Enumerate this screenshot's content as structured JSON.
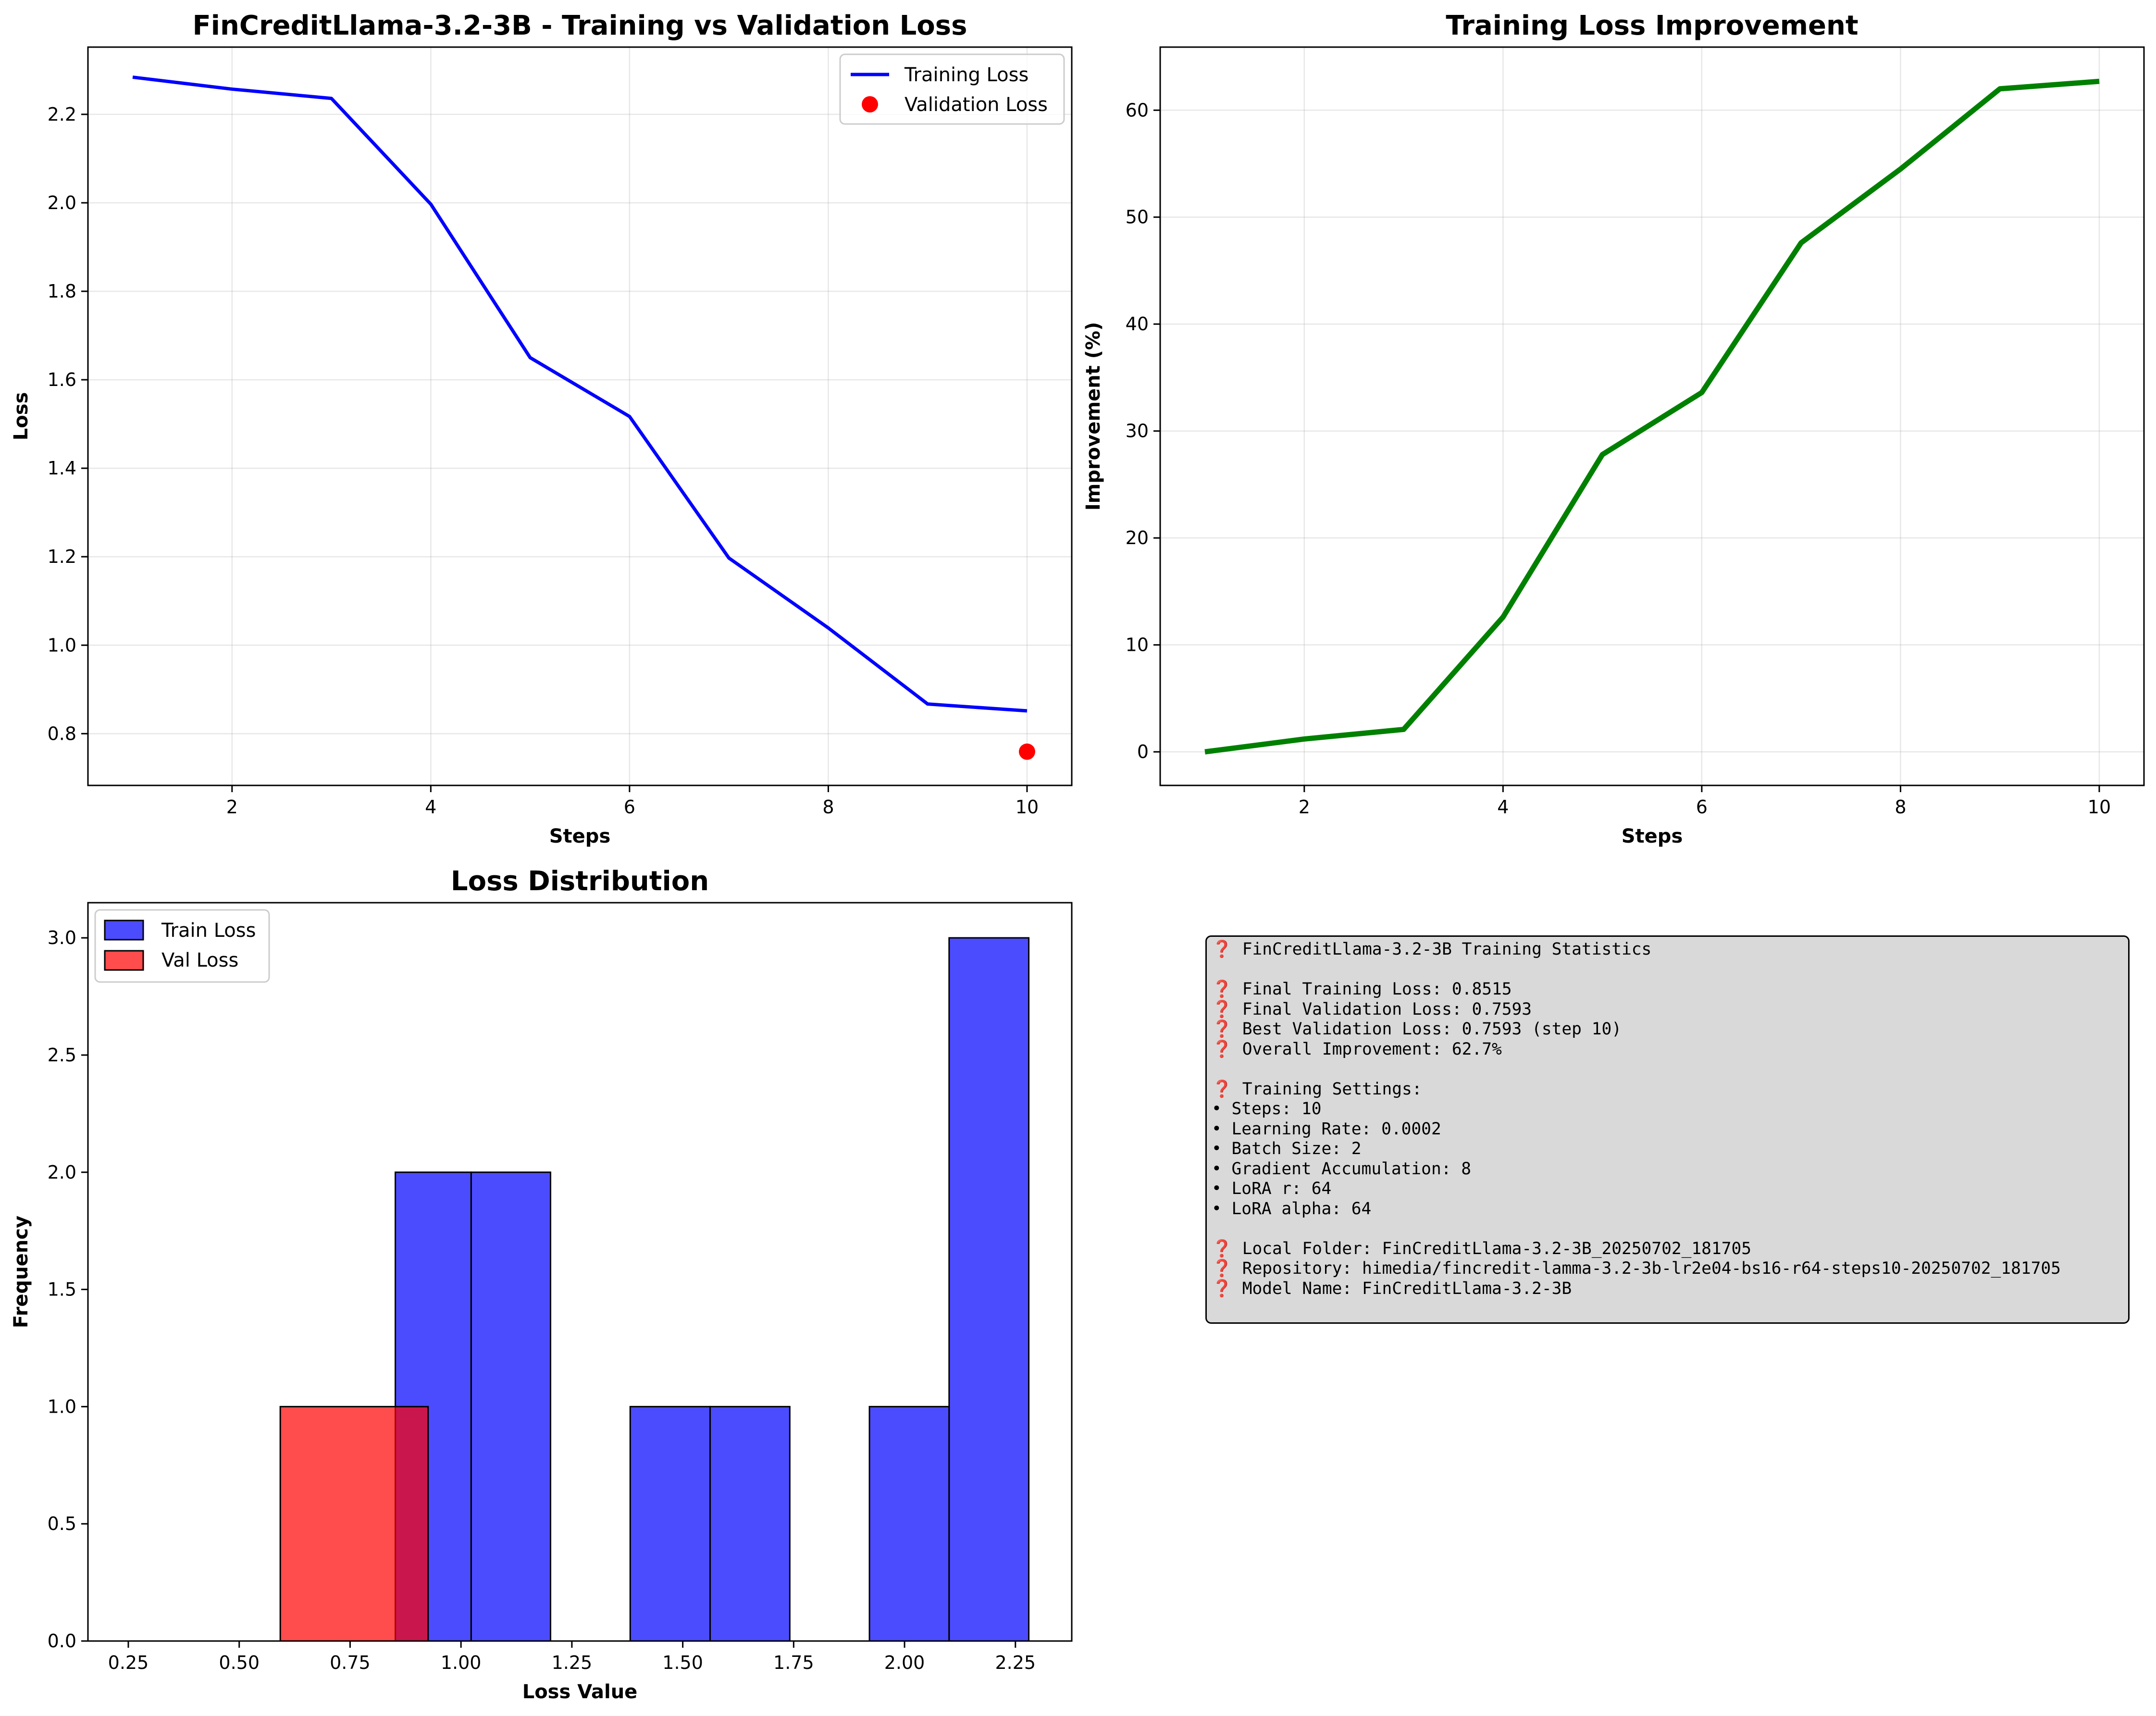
{
  "chart_data": [
    {
      "type": "line",
      "title": "FinCreditLlama-3.2-3B - Training vs Validation Loss",
      "xlabel": "Steps",
      "ylabel": "Loss",
      "xlim": [
        0.55,
        10.45
      ],
      "ylim": [
        0.683,
        2.352
      ],
      "xticks": [
        2,
        4,
        6,
        8,
        10
      ],
      "yticks": [
        0.8,
        1.0,
        1.2,
        1.4,
        1.6,
        1.8,
        2.0,
        2.2
      ],
      "grid": true,
      "legend": "top-right",
      "series": [
        {
          "name": "Training Loss",
          "style": "line",
          "color": "#0000ff",
          "x": [
            1,
            2,
            3,
            4,
            5,
            6,
            7,
            8,
            9,
            10
          ],
          "y": [
            2.284,
            2.257,
            2.236,
            1.997,
            1.65,
            1.517,
            1.197,
            1.039,
            0.867,
            0.8515
          ]
        },
        {
          "name": "Validation Loss",
          "style": "scatter",
          "color": "#ff0000",
          "x": [
            10
          ],
          "y": [
            0.7593
          ]
        }
      ]
    },
    {
      "type": "line",
      "title": "Training Loss Improvement",
      "xlabel": "Steps",
      "ylabel": "Improvement (%)",
      "xlim": [
        0.55,
        10.45
      ],
      "ylim": [
        -3.14,
        65.9
      ],
      "xticks": [
        2,
        4,
        6,
        8,
        10
      ],
      "yticks": [
        0,
        10,
        20,
        30,
        40,
        50,
        60
      ],
      "grid": true,
      "series": [
        {
          "color": "#008000",
          "x": [
            1,
            2,
            3,
            4,
            5,
            6,
            7,
            8,
            9,
            10
          ],
          "y": [
            0.0,
            1.2,
            2.1,
            12.6,
            27.8,
            33.6,
            47.6,
            54.5,
            62.0,
            62.7
          ]
        }
      ]
    },
    {
      "type": "bar",
      "subtype": "histogram",
      "title": "Loss Distribution",
      "xlabel": "Loss Value",
      "ylabel": "Frequency",
      "xlim": [
        0.159,
        2.377
      ],
      "ylim": [
        0,
        3.15
      ],
      "xticks": [
        0.25,
        0.5,
        0.75,
        1.0,
        1.25,
        1.5,
        1.75,
        2.0,
        2.25
      ],
      "xtick_labels": [
        "0.25",
        "0.50",
        "0.75",
        "1.00",
        "1.25",
        "1.50",
        "1.75",
        "2.00",
        "2.25"
      ],
      "yticks": [
        0.0,
        0.5,
        1.0,
        1.5,
        2.0,
        2.5,
        3.0
      ],
      "yticks_labels": [
        "0.0",
        "0.5",
        "1.0",
        "1.5",
        "2.0",
        "2.5",
        "3.0"
      ],
      "grid": false,
      "legend": "top-left",
      "series": [
        {
          "name": "Train Loss",
          "color": "#0000ff",
          "alpha": 0.7,
          "bins": [
            {
              "x0": 0.852,
              "x1": 1.0229,
              "count": 2
            },
            {
              "x0": 1.0229,
              "x1": 1.2019,
              "count": 2
            },
            {
              "x0": 1.2019,
              "x1": 1.3815,
              "count": 0
            },
            {
              "x0": 1.3815,
              "x1": 1.5617,
              "count": 1
            },
            {
              "x0": 1.5617,
              "x1": 1.7413,
              "count": 1
            },
            {
              "x0": 1.7413,
              "x1": 1.9209,
              "count": 0
            },
            {
              "x0": 1.9209,
              "x1": 2.1005,
              "count": 1
            },
            {
              "x0": 2.1005,
              "x1": 2.2801,
              "count": 3
            }
          ]
        },
        {
          "name": "Val Loss",
          "color": "#ff0000",
          "alpha": 0.7,
          "bins": [
            {
              "x0": 0.2593,
              "x1": 0.4259,
              "count": 0
            },
            {
              "x0": 0.4259,
              "x1": 0.5926,
              "count": 0
            },
            {
              "x0": 0.5926,
              "x1": 0.9259,
              "count": 1
            },
            {
              "x0": 0.9259,
              "x1": 1.2593,
              "count": 0
            }
          ]
        }
      ]
    }
  ],
  "stats_panel": {
    "lines": [
      "❓ FinCreditLlama-3.2-3B Training Statistics",
      "",
      "❓ Final Training Loss: 0.8515",
      "❓ Final Validation Loss: 0.7593",
      "❓ Best Validation Loss: 0.7593 (step 10)",
      "❓ Overall Improvement: 62.7%",
      "",
      "❓ Training Settings:",
      "• Steps: 10",
      "• Learning Rate: 0.0002",
      "• Batch Size: 2",
      "• Gradient Accumulation: 8",
      "• LoRA r: 64",
      "• LoRA alpha: 64",
      "",
      "❓ Local Folder: FinCreditLlama-3.2-3B_20250702_181705",
      "❓ Repository: himedia/fincredit-lamma-3.2-3b-lr2e04-bs16-r64-steps10-20250702_181705",
      "❓ Model Name: FinCreditLlama-3.2-3B"
    ]
  }
}
